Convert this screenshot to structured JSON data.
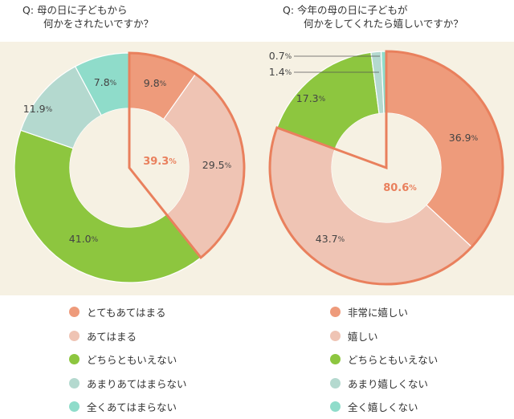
{
  "charts": [
    {
      "title_line1": "Q: 母の日に子どもから",
      "title_line2": "何かをされたいですか？",
      "center_value": "39.3",
      "center_unit": "%"
    },
    {
      "title_line1": "Q: 今年の母の日に子どもが",
      "title_line2": "何かをしてくれたら嬉しいですか？",
      "center_value": "80.6",
      "center_unit": "%"
    }
  ],
  "chart_data": [
    {
      "type": "pie",
      "title": "Q: 母の日に子どもから 何かをされたいですか？",
      "categories": [
        "とてもあてはまる",
        "あてはまる",
        "どちらともいえない",
        "あまりあてはまらない",
        "全くあてはまらない"
      ],
      "values": [
        9.8,
        29.5,
        41.0,
        11.9,
        7.8
      ],
      "labels": [
        "9.8",
        "29.5",
        "41.0",
        "11.9",
        "7.8"
      ],
      "unit": "%",
      "colors": [
        "#ee9b7b",
        "#efc4b4",
        "#8dc63f",
        "#b4d9cf",
        "#8fdcca"
      ],
      "highlight_total": "39.3",
      "legend_position": "bottom"
    },
    {
      "type": "pie",
      "title": "Q: 今年の母の日に子どもが 何かをしてくれたら嬉しいですか？",
      "categories": [
        "非常に嬉しい",
        "嬉しい",
        "どちらともいえない",
        "あまり嬉しくない",
        "全く嬉しくない"
      ],
      "values": [
        36.9,
        43.7,
        17.3,
        1.4,
        0.7
      ],
      "labels": [
        "36.9",
        "43.7",
        "17.3",
        "1.4",
        "0.7"
      ],
      "unit": "%",
      "colors": [
        "#ee9b7b",
        "#efc4b4",
        "#8dc63f",
        "#b4d9cf",
        "#8fdcca"
      ],
      "highlight_total": "80.6",
      "legend_position": "bottom"
    }
  ]
}
